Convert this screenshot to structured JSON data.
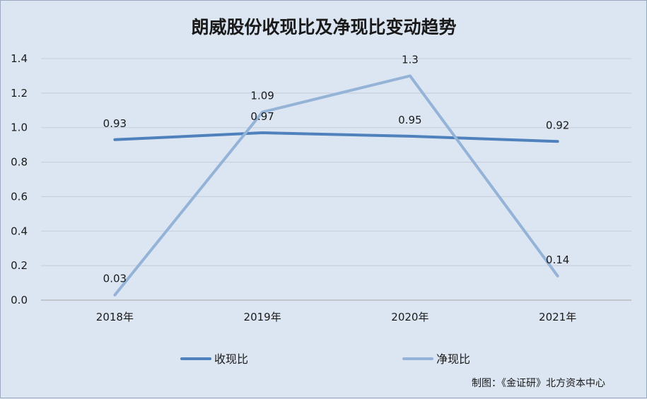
{
  "chart_data": {
    "type": "line",
    "title": "朗威股份收现比及净现比变动趋势",
    "categories": [
      "2018年",
      "2019年",
      "2020年",
      "2021年"
    ],
    "series": [
      {
        "name": "收现比",
        "values": [
          0.93,
          0.97,
          0.95,
          0.92
        ],
        "labels": [
          "0.93",
          "0.97",
          "0.95",
          "0.92"
        ],
        "color": "#4f81bd"
      },
      {
        "name": "净现比",
        "values": [
          0.03,
          1.09,
          1.3,
          0.14
        ],
        "labels": [
          "0.03",
          "1.09",
          "1.3",
          "0.14"
        ],
        "color": "#95b3d7"
      }
    ],
    "ylim": [
      0,
      1.4
    ],
    "yticks": [
      "0.0",
      "0.2",
      "0.4",
      "0.6",
      "0.8",
      "1.0",
      "1.2",
      "1.4"
    ],
    "grid": true,
    "legend_position": "bottom",
    "source_note": "制图：《金证研》北方资本中心"
  }
}
